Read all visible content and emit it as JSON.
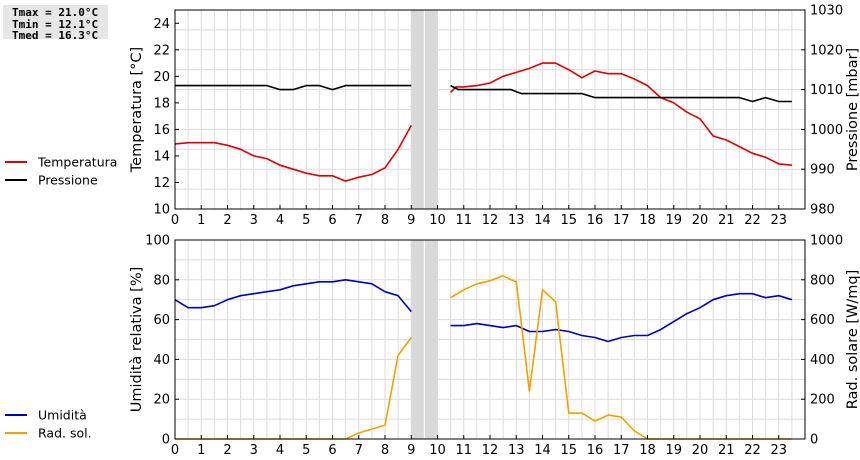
{
  "stats": {
    "tmax": "Tmax = 21.0°C",
    "tmin": "Tmin = 12.1°C",
    "tmed": "Tmed = 16.3°C"
  },
  "colors": {
    "temperatura": "#dd0000",
    "pressione": "#000000",
    "umidita": "#0000bb",
    "radsol": "#f5a000",
    "gap": "#d9d9d9"
  },
  "chart_data": [
    {
      "type": "line",
      "xlim": [
        0,
        24
      ],
      "xticks": [
        0,
        1,
        2,
        3,
        4,
        5,
        6,
        7,
        8,
        9,
        10,
        11,
        12,
        13,
        14,
        15,
        16,
        17,
        18,
        19,
        20,
        21,
        22,
        23
      ],
      "gap": [
        9,
        10
      ],
      "ylabel": "Temperatura [°C]",
      "ylim": [
        10,
        25
      ],
      "yticks": [
        10,
        12,
        14,
        16,
        18,
        20,
        22,
        24
      ],
      "y2label": "Pressione [mbar]",
      "y2lim": [
        980,
        1030
      ],
      "y2ticks": [
        980,
        990,
        1000,
        1010,
        1020,
        1030
      ],
      "grid": true,
      "legend_position": "left",
      "series": [
        {
          "name": "Temperatura",
          "axis": "left",
          "color": "#dd0000",
          "segments": [
            [
              [
                0,
                14.9
              ],
              [
                0.5,
                15.0
              ],
              [
                1,
                15.0
              ],
              [
                1.5,
                15.0
              ],
              [
                2,
                14.8
              ],
              [
                2.5,
                14.5
              ],
              [
                3,
                14.0
              ],
              [
                3.5,
                13.8
              ],
              [
                4,
                13.3
              ],
              [
                4.5,
                13.0
              ],
              [
                5,
                12.7
              ],
              [
                5.5,
                12.5
              ],
              [
                6,
                12.5
              ],
              [
                6.5,
                12.1
              ],
              [
                7,
                12.4
              ],
              [
                7.5,
                12.6
              ],
              [
                8,
                13.1
              ],
              [
                8.5,
                14.5
              ],
              [
                9,
                16.3
              ]
            ],
            [
              [
                10.5,
                18.8
              ],
              [
                10.7,
                19.2
              ],
              [
                11,
                19.2
              ],
              [
                11.5,
                19.3
              ],
              [
                12,
                19.5
              ],
              [
                12.5,
                20.0
              ],
              [
                13,
                20.3
              ],
              [
                13.5,
                20.6
              ],
              [
                14,
                21.0
              ],
              [
                14.5,
                21.0
              ],
              [
                15,
                20.5
              ],
              [
                15.5,
                19.9
              ],
              [
                16,
                20.4
              ],
              [
                16.5,
                20.2
              ],
              [
                17,
                20.2
              ],
              [
                17.5,
                19.8
              ],
              [
                18,
                19.3
              ],
              [
                18.5,
                18.4
              ],
              [
                19,
                18.0
              ],
              [
                19.5,
                17.3
              ],
              [
                20,
                16.8
              ],
              [
                20.5,
                15.5
              ],
              [
                21,
                15.2
              ],
              [
                21.5,
                14.7
              ],
              [
                22,
                14.2
              ],
              [
                22.5,
                13.9
              ],
              [
                23,
                13.4
              ],
              [
                23.5,
                13.3
              ]
            ]
          ]
        },
        {
          "name": "Pressione",
          "axis": "right",
          "color": "#000000",
          "segments": [
            [
              [
                0,
                1011
              ],
              [
                1,
                1011
              ],
              [
                2,
                1011
              ],
              [
                3,
                1011
              ],
              [
                3.5,
                1011
              ],
              [
                4,
                1010
              ],
              [
                4.5,
                1010
              ],
              [
                5,
                1011
              ],
              [
                5.5,
                1011
              ],
              [
                6,
                1010
              ],
              [
                6.5,
                1011
              ],
              [
                7,
                1011
              ],
              [
                8,
                1011
              ],
              [
                9,
                1011
              ]
            ],
            [
              [
                10.5,
                1011
              ],
              [
                10.8,
                1010
              ],
              [
                11,
                1010
              ],
              [
                12,
                1010
              ],
              [
                12.8,
                1010
              ],
              [
                13.2,
                1009
              ],
              [
                14,
                1009
              ],
              [
                15,
                1009
              ],
              [
                15.5,
                1009
              ],
              [
                16,
                1008
              ],
              [
                17,
                1008
              ],
              [
                18,
                1008
              ],
              [
                19,
                1008
              ],
              [
                20,
                1008
              ],
              [
                21,
                1008
              ],
              [
                21.5,
                1008
              ],
              [
                22,
                1007
              ],
              [
                22.5,
                1008
              ],
              [
                23,
                1007
              ],
              [
                23.5,
                1007
              ]
            ]
          ]
        }
      ]
    },
    {
      "type": "line",
      "xlim": [
        0,
        24
      ],
      "xticks": [
        0,
        1,
        2,
        3,
        4,
        5,
        6,
        7,
        8,
        9,
        10,
        11,
        12,
        13,
        14,
        15,
        16,
        17,
        18,
        19,
        20,
        21,
        22,
        23
      ],
      "gap": [
        9,
        10
      ],
      "ylabel": "Umidità relativa [%]",
      "ylim": [
        0,
        100
      ],
      "yticks": [
        0,
        20,
        40,
        60,
        80,
        100
      ],
      "y2label": "Rad. solare [W/mq]",
      "y2lim": [
        0,
        1000
      ],
      "y2ticks": [
        0,
        200,
        400,
        600,
        800,
        1000
      ],
      "grid": true,
      "legend_position": "left",
      "series": [
        {
          "name": "Umidità",
          "axis": "left",
          "color": "#0000bb",
          "segments": [
            [
              [
                0,
                70
              ],
              [
                0.5,
                66
              ],
              [
                1,
                66
              ],
              [
                1.5,
                67
              ],
              [
                2,
                70
              ],
              [
                2.5,
                72
              ],
              [
                3,
                73
              ],
              [
                3.5,
                74
              ],
              [
                4,
                75
              ],
              [
                4.5,
                77
              ],
              [
                5,
                78
              ],
              [
                5.5,
                79
              ],
              [
                6,
                79
              ],
              [
                6.5,
                80
              ],
              [
                7,
                79
              ],
              [
                7.5,
                78
              ],
              [
                8,
                74
              ],
              [
                8.5,
                72
              ],
              [
                9,
                64
              ]
            ],
            [
              [
                10.5,
                57
              ],
              [
                11,
                57
              ],
              [
                11.5,
                58
              ],
              [
                12,
                57
              ],
              [
                12.5,
                56
              ],
              [
                13,
                57
              ],
              [
                13.5,
                54
              ],
              [
                14,
                54
              ],
              [
                14.5,
                55
              ],
              [
                15,
                54
              ],
              [
                15.5,
                52
              ],
              [
                16,
                51
              ],
              [
                16.5,
                49
              ],
              [
                17,
                51
              ],
              [
                17.5,
                52
              ],
              [
                18,
                52
              ],
              [
                18.5,
                55
              ],
              [
                19,
                59
              ],
              [
                19.5,
                63
              ],
              [
                20,
                66
              ],
              [
                20.5,
                70
              ],
              [
                21,
                72
              ],
              [
                21.5,
                73
              ],
              [
                22,
                73
              ],
              [
                22.5,
                71
              ],
              [
                23,
                72
              ],
              [
                23.5,
                70
              ]
            ]
          ]
        },
        {
          "name": "Rad. sol.",
          "axis": "right",
          "color": "#f5a000",
          "segments": [
            [
              [
                0,
                0
              ],
              [
                1,
                0
              ],
              [
                2,
                0
              ],
              [
                3,
                0
              ],
              [
                4,
                0
              ],
              [
                5,
                0
              ],
              [
                6,
                0
              ],
              [
                6.5,
                0
              ],
              [
                7,
                30
              ],
              [
                7.5,
                50
              ],
              [
                8,
                70
              ],
              [
                8.5,
                420
              ],
              [
                9,
                510
              ]
            ],
            [
              [
                10.5,
                710
              ],
              [
                11,
                750
              ],
              [
                11.5,
                780
              ],
              [
                12,
                795
              ],
              [
                12.5,
                820
              ],
              [
                12.8,
                800
              ],
              [
                13,
                790
              ],
              [
                13.5,
                240
              ],
              [
                14,
                750
              ],
              [
                14.5,
                690
              ],
              [
                15,
                130
              ],
              [
                15.5,
                130
              ],
              [
                16,
                90
              ],
              [
                16.5,
                120
              ],
              [
                17,
                110
              ],
              [
                17.5,
                40
              ],
              [
                18,
                0
              ],
              [
                19,
                0
              ],
              [
                20,
                0
              ],
              [
                21,
                0
              ],
              [
                22,
                0
              ],
              [
                23,
                0
              ],
              [
                23.5,
                0
              ]
            ]
          ]
        }
      ]
    }
  ]
}
